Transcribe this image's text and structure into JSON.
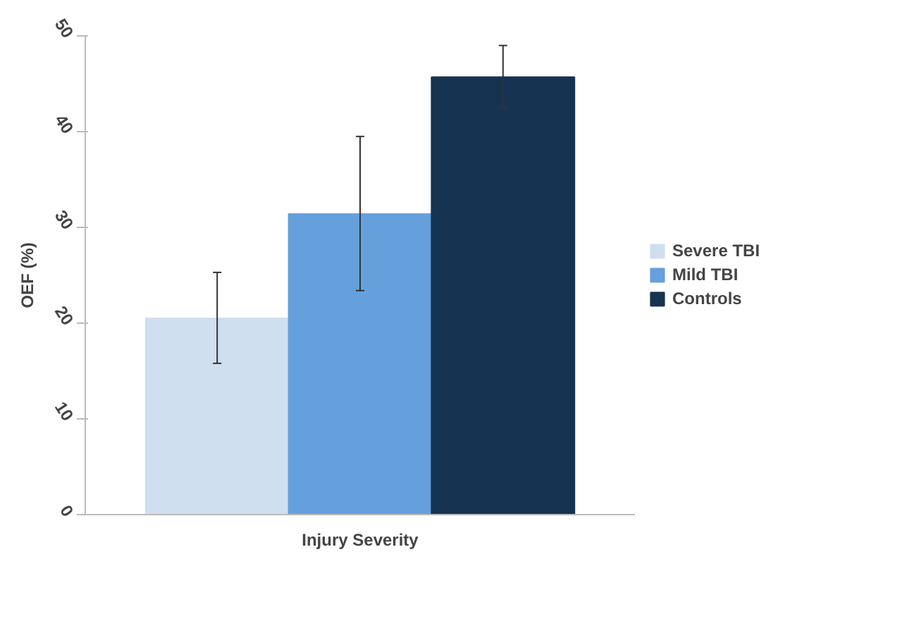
{
  "chart_data": {
    "type": "bar",
    "xlabel": "Injury Severity",
    "ylabel": "OEF (%)",
    "categories": [
      null
    ],
    "series": [
      {
        "name": "Severe TBI",
        "color": "#cfdff0",
        "values": [
          20.5
        ],
        "errors": [
          [
            15.8,
            25.3
          ]
        ]
      },
      {
        "name": "Mild TBI",
        "color": "#66a0dc",
        "values": [
          31.4
        ],
        "errors": [
          [
            23.4,
            39.5
          ]
        ]
      },
      {
        "name": "Controls",
        "color": "#163352",
        "values": [
          45.7
        ],
        "errors": [
          [
            42.5,
            49.0
          ]
        ]
      }
    ],
    "ylim": [
      0,
      50
    ],
    "yticks": [
      0,
      10,
      20,
      30,
      40,
      50
    ],
    "grid": false,
    "legend": "right"
  }
}
